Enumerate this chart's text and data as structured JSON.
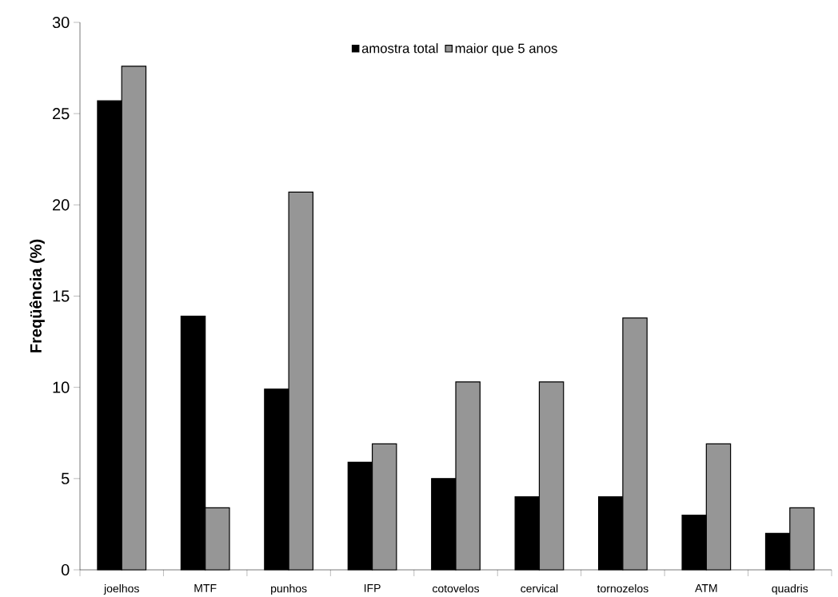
{
  "chart_data": {
    "type": "bar",
    "ylabel": "Freqüência (%)",
    "categories": [
      "joelhos",
      "MTF",
      "punhos",
      "IFP",
      "cotovelos",
      "cervical",
      "tornozelos",
      "ATM",
      "quadris"
    ],
    "series": [
      {
        "name": "amostra total",
        "color": "#000000",
        "values": [
          25.7,
          13.9,
          9.9,
          5.9,
          5.0,
          4.0,
          4.0,
          3.0,
          2.0
        ]
      },
      {
        "name": "maior que 5 anos",
        "color": "#969696",
        "values": [
          27.6,
          3.4,
          20.7,
          6.9,
          10.3,
          10.3,
          13.8,
          6.9,
          3.4
        ]
      }
    ],
    "ylim": [
      0,
      30
    ],
    "yticks": [
      0,
      5,
      10,
      15,
      20,
      25,
      30
    ],
    "legend": "top"
  }
}
